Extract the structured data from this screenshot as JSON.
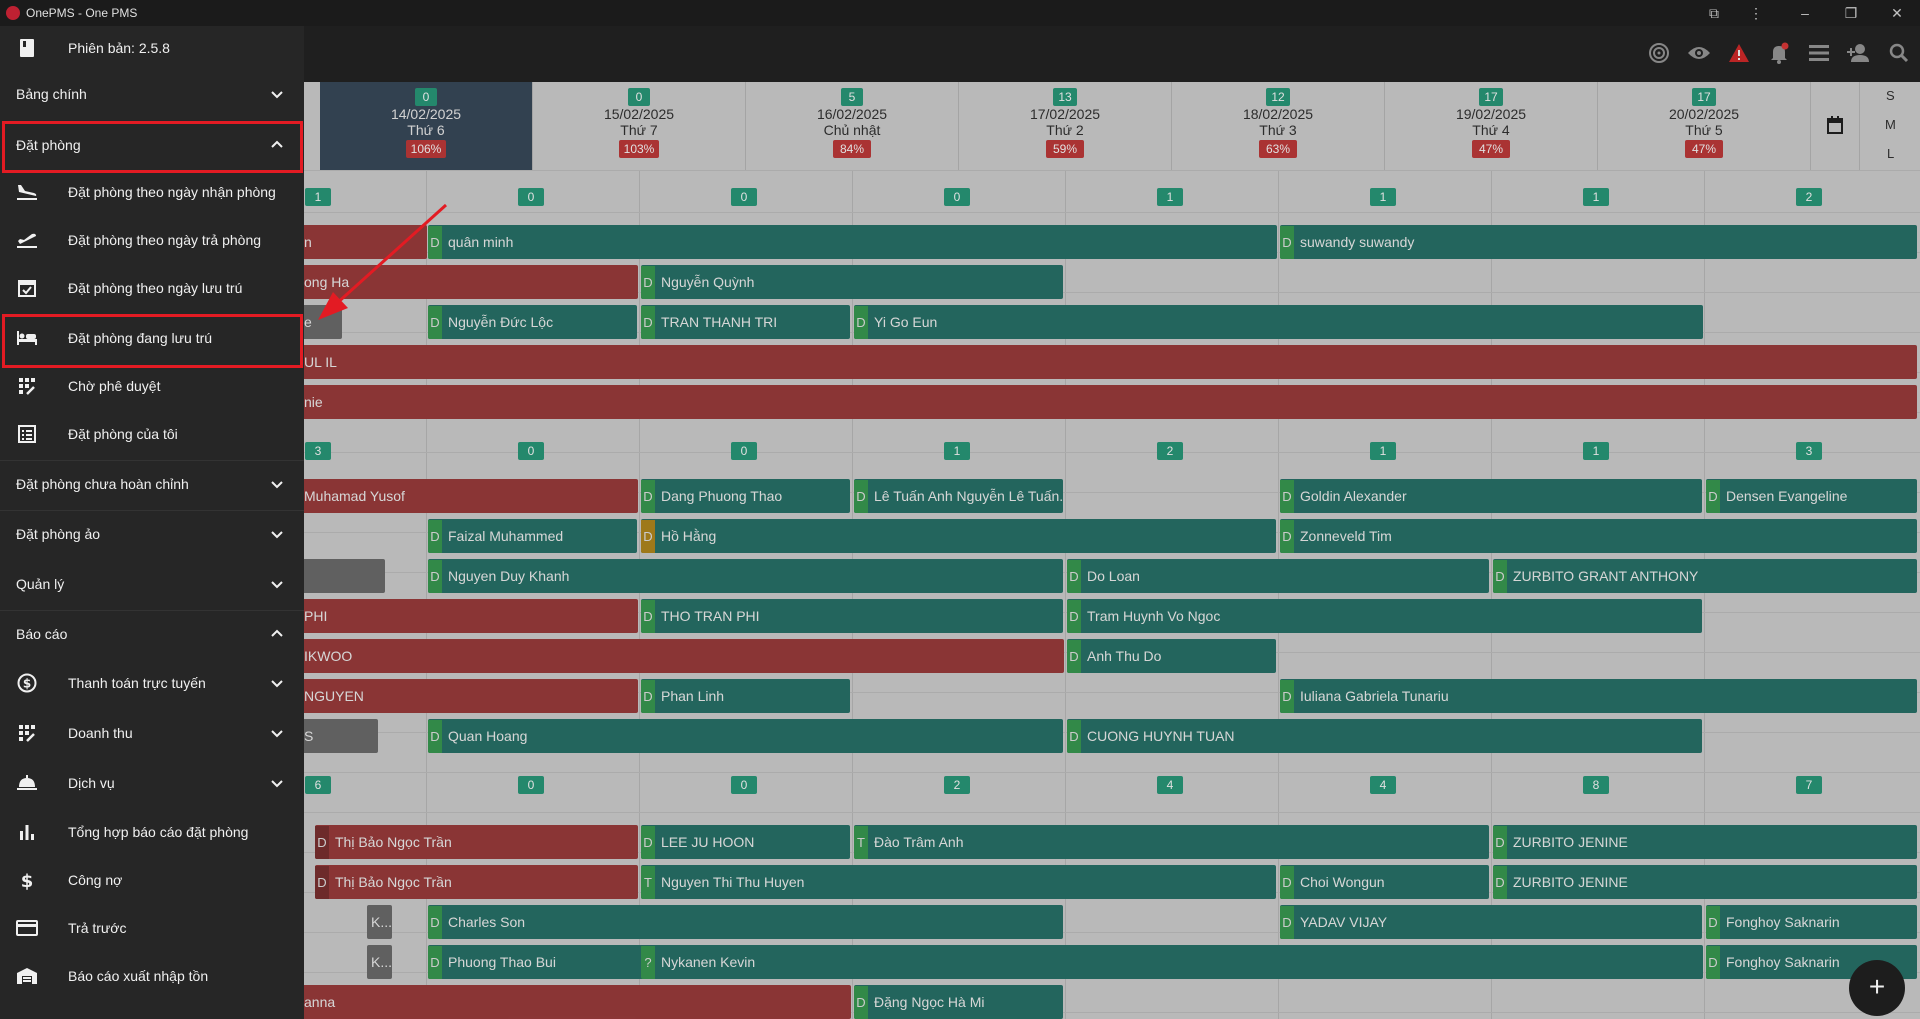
{
  "window": {
    "title": "OnePMS - One PMS"
  },
  "sidebar": {
    "version": "Phiên bản: 2.5.8",
    "items": [
      {
        "label": "Bảng chính",
        "type": "section",
        "chevron": "down"
      },
      {
        "label": "Đặt phòng",
        "type": "section",
        "chevron": "up"
      },
      {
        "label": "Đặt phòng theo ngày nhận phòng",
        "icon": "plane-landing-icon"
      },
      {
        "label": "Đặt phòng theo ngày trả phòng",
        "icon": "plane-takeoff-icon"
      },
      {
        "label": "Đặt phòng theo ngày lưu trú",
        "icon": "calendar-check-icon"
      },
      {
        "label": "Đặt phòng đang lưu trú",
        "icon": "bed-icon"
      },
      {
        "label": "Chờ phê duyệt",
        "icon": "pending-icon"
      },
      {
        "label": "Đặt phòng của tôi",
        "icon": "list-icon"
      },
      {
        "label": "Đặt phòng chưa hoàn chỉnh",
        "type": "section",
        "chevron": "down"
      },
      {
        "label": "Đặt phòng ảo",
        "type": "section",
        "chevron": "down"
      },
      {
        "label": "Quản lý",
        "type": "section",
        "chevron": "down"
      },
      {
        "label": "Báo cáo",
        "type": "section",
        "chevron": "up"
      },
      {
        "label": "Thanh toán trực tuyến",
        "icon": "dollar-circle-icon",
        "chevron": "down"
      },
      {
        "label": "Doanh thu",
        "icon": "pending-icon",
        "chevron": "down"
      },
      {
        "label": "Dịch vụ",
        "icon": "service-bell-icon",
        "chevron": "down"
      },
      {
        "label": "Tổng hợp báo cáo đặt phòng",
        "icon": "bar-chart-icon"
      },
      {
        "label": "Công nợ",
        "icon": "dollar-icon"
      },
      {
        "label": "Trả trước",
        "icon": "credit-card-icon"
      },
      {
        "label": "Báo cáo xuất nhập tồn",
        "icon": "warehouse-icon"
      }
    ]
  },
  "dates": [
    {
      "count": "0",
      "date": "14/02/2025",
      "weekday": "Thứ 6",
      "occupancy": "106%"
    },
    {
      "count": "0",
      "date": "15/02/2025",
      "weekday": "Thứ 7",
      "occupancy": "103%"
    },
    {
      "count": "5",
      "date": "16/02/2025",
      "weekday": "Chủ nhật",
      "occupancy": "84%"
    },
    {
      "count": "13",
      "date": "17/02/2025",
      "weekday": "Thứ 2",
      "occupancy": "59%"
    },
    {
      "count": "12",
      "date": "18/02/2025",
      "weekday": "Thứ 3",
      "occupancy": "63%"
    },
    {
      "count": "17",
      "date": "19/02/2025",
      "weekday": "Thứ 4",
      "occupancy": "47%"
    },
    {
      "count": "17",
      "date": "20/02/2025",
      "weekday": "Thứ 5",
      "occupancy": "47%"
    }
  ],
  "view_modes": [
    "S",
    "M",
    "L"
  ],
  "group_counts": [
    [
      "1",
      "0",
      "0",
      "0",
      "1",
      "1",
      "1",
      "2"
    ],
    [
      "3",
      "0",
      "0",
      "1",
      "2",
      "1",
      "1",
      "3"
    ],
    [
      "6",
      "0",
      "0",
      "2",
      "4",
      "4",
      "8",
      "7"
    ]
  ],
  "bookings": [
    {
      "text": "n",
      "tag": "",
      "color": "red"
    },
    {
      "text": "quân minh",
      "tag": "D",
      "color": "green"
    },
    {
      "text": "suwandy suwandy",
      "tag": "D",
      "color": "green"
    },
    {
      "text": "ong Ha",
      "tag": "",
      "color": "red"
    },
    {
      "text": "Nguyễn Quỳnh",
      "tag": "D",
      "color": "green"
    },
    {
      "text": "e",
      "tag": "",
      "color": "gray"
    },
    {
      "text": "Nguyễn Đức Lộc",
      "tag": "D",
      "color": "green"
    },
    {
      "text": "TRAN THANH TRI",
      "tag": "D",
      "color": "green"
    },
    {
      "text": "Yi Go Eun",
      "tag": "D",
      "color": "green"
    },
    {
      "text": "UL IL",
      "tag": "",
      "color": "red"
    },
    {
      "text": "nie",
      "tag": "",
      "color": "red"
    },
    {
      "text": "Muhamad Yusof",
      "tag": "",
      "color": "red"
    },
    {
      "text": "Dang Phuong Thao",
      "tag": "D",
      "color": "green"
    },
    {
      "text": "Lê Tuấn Anh Nguyễn Lê Tuấn...",
      "tag": "D",
      "color": "green"
    },
    {
      "text": "Goldin Alexander",
      "tag": "D",
      "color": "green"
    },
    {
      "text": "Densen Evangeline",
      "tag": "D",
      "color": "green"
    },
    {
      "text": "Faizal Muhammed",
      "tag": "D",
      "color": "green"
    },
    {
      "text": "Hồ Hằng",
      "tag": "D",
      "color": "green"
    },
    {
      "text": "Zonneveld Tim",
      "tag": "D",
      "color": "green"
    },
    {
      "text": "",
      "tag": "",
      "color": "gray"
    },
    {
      "text": "Nguyen Duy Khanh",
      "tag": "D",
      "color": "green"
    },
    {
      "text": "Do Loan",
      "tag": "D",
      "color": "green"
    },
    {
      "text": "ZURBITO GRANT ANTHONY",
      "tag": "D",
      "color": "green"
    },
    {
      "text": "PHI",
      "tag": "",
      "color": "red"
    },
    {
      "text": "THO TRAN PHI",
      "tag": "D",
      "color": "green"
    },
    {
      "text": "Tram Huynh Vo Ngoc",
      "tag": "D",
      "color": "green"
    },
    {
      "text": "IKWOO",
      "tag": "",
      "color": "red"
    },
    {
      "text": "Anh Thu Do",
      "tag": "D",
      "color": "green"
    },
    {
      "text": "NGUYEN",
      "tag": "",
      "color": "red"
    },
    {
      "text": "Phan Linh",
      "tag": "D",
      "color": "green"
    },
    {
      "text": "Iuliana Gabriela Tunariu",
      "tag": "D",
      "color": "green"
    },
    {
      "text": "S",
      "tag": "",
      "color": "gray"
    },
    {
      "text": "Quan Hoang",
      "tag": "D",
      "color": "green"
    },
    {
      "text": "CUONG HUYNH TUAN",
      "tag": "D",
      "color": "green"
    },
    {
      "text": "Thị Bảo Ngọc Trần",
      "tag": "D",
      "color": "red"
    },
    {
      "text": "LEE JU HOON",
      "tag": "D",
      "color": "green"
    },
    {
      "text": "Đào Trâm Anh",
      "tag": "T",
      "color": "green"
    },
    {
      "text": "ZURBITO JENINE",
      "tag": "D",
      "color": "green"
    },
    {
      "text": "Thị Bảo Ngọc Trần",
      "tag": "D",
      "color": "red"
    },
    {
      "text": "Nguyen Thi Thu Huyen",
      "tag": "T",
      "color": "green"
    },
    {
      "text": "Choi Wongun",
      "tag": "D",
      "color": "green"
    },
    {
      "text": "ZURBITO JENINE",
      "tag": "D",
      "color": "green"
    },
    {
      "text": "K...",
      "tag": "",
      "color": "gray"
    },
    {
      "text": "Charles Son",
      "tag": "D",
      "color": "green"
    },
    {
      "text": "YADAV VIJAY",
      "tag": "D",
      "color": "green"
    },
    {
      "text": "Fonghoy Saknarin",
      "tag": "D",
      "color": "green"
    },
    {
      "text": "K...",
      "tag": "",
      "color": "gray"
    },
    {
      "text": "Phuong Thao Bui",
      "tag": "D",
      "color": "green"
    },
    {
      "text": "Nykanen Kevin",
      "tag": "?",
      "color": "green"
    },
    {
      "text": "Fonghoy Saknarin",
      "tag": "D",
      "color": "green"
    },
    {
      "text": "anna",
      "tag": "",
      "color": "red"
    },
    {
      "text": "Đặng Ngọc Hà Mi",
      "tag": "D",
      "color": "green"
    }
  ],
  "fab": {
    "label": "+"
  }
}
